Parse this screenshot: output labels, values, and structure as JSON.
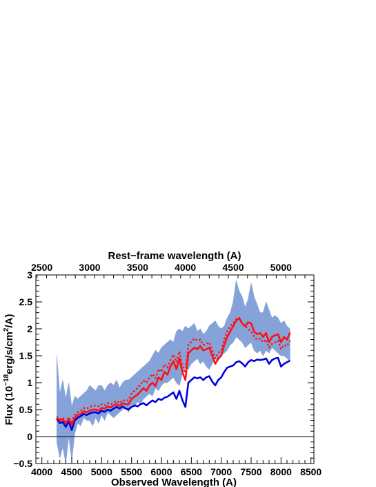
{
  "chart_data": {
    "type": "line",
    "xlabel": "Observed Wavelength (A)",
    "x2label": "Rest−frame wavelength (A)",
    "ylabel_main": "Flux (10",
    "ylabel_exp1": "−18",
    "ylabel_mid": "erg/s/cm",
    "ylabel_exp2": "2",
    "ylabel_end": "/A)",
    "xlim": [
      3900,
      8550
    ],
    "ylim": [
      -0.5,
      3
    ],
    "x_ticks": [
      4000,
      4500,
      5000,
      5500,
      6000,
      6500,
      7000,
      7500,
      8000,
      8500
    ],
    "x_tick_labels": [
      "4000",
      "4500",
      "5000",
      "5500",
      "6000",
      "6500",
      "7000",
      "7500",
      "8000",
      "8500"
    ],
    "y_ticks": [
      -0.5,
      0,
      0.5,
      1,
      1.5,
      2,
      2.5,
      3
    ],
    "y_tick_labels": [
      "−0.5",
      "0",
      "0.5",
      "1",
      "1.5",
      "2",
      "2.5",
      "3"
    ],
    "x2_ticks": [
      2500,
      3000,
      3500,
      4000,
      4500,
      5000
    ],
    "x2_tick_labels": [
      "2500",
      "3000",
      "3500",
      "4000",
      "4500",
      "5000"
    ],
    "rest_frame_factor": 1.6,
    "grid": false,
    "zero_line": true,
    "series": [
      {
        "style": "band",
        "color": "#7f9fd6",
        "x": [
          4250,
          4300,
          4350,
          4400,
          4450,
          4500,
          4550,
          4600,
          4650,
          4700,
          4750,
          4800,
          4850,
          4900,
          4950,
          5000,
          5050,
          5100,
          5150,
          5200,
          5250,
          5300,
          5350,
          5400,
          5450,
          5500,
          5550,
          5600,
          5650,
          5700,
          5750,
          5800,
          5850,
          5900,
          5950,
          6000,
          6050,
          6100,
          6150,
          6200,
          6250,
          6300,
          6350,
          6400,
          6450,
          6500,
          6550,
          6600,
          6650,
          6700,
          6750,
          6800,
          6850,
          6900,
          6950,
          7000,
          7050,
          7100,
          7150,
          7200,
          7250,
          7300,
          7350,
          7400,
          7450,
          7500,
          7550,
          7600,
          7650,
          7700,
          7750,
          7800,
          7850,
          7900,
          7950,
          8000,
          8050,
          8100,
          8150
        ],
        "low": [
          -0.1,
          -0.4,
          -0.2,
          -0.5,
          0.0,
          -0.45,
          0.05,
          0.25,
          0.2,
          0.35,
          0.3,
          0.3,
          0.2,
          0.35,
          0.25,
          0.4,
          0.3,
          0.45,
          0.4,
          0.35,
          0.4,
          0.45,
          0.5,
          0.55,
          0.45,
          0.6,
          0.55,
          0.65,
          0.6,
          0.7,
          0.75,
          0.8,
          0.75,
          0.9,
          0.85,
          0.95,
          1.0,
          1.0,
          1.05,
          1.1,
          1.0,
          0.95,
          1.15,
          1.3,
          1.25,
          1.35,
          1.4,
          1.45,
          1.35,
          1.4,
          1.3,
          1.25,
          1.35,
          1.45,
          1.4,
          1.5,
          1.55,
          1.6,
          1.7,
          1.75,
          1.85,
          1.8,
          1.75,
          1.65,
          1.7,
          1.75,
          1.6,
          1.55,
          1.6,
          1.5,
          1.6,
          1.55,
          1.65,
          1.6,
          1.55,
          1.5,
          1.5,
          1.45,
          1.4
        ],
        "high": [
          1.5,
          0.8,
          1.05,
          0.7,
          1.0,
          0.55,
          0.75,
          0.7,
          0.75,
          0.8,
          0.85,
          0.95,
          0.9,
          0.85,
          0.95,
          0.95,
          0.85,
          0.95,
          1.0,
          0.95,
          1.05,
          0.9,
          1.0,
          1.05,
          1.05,
          1.1,
          1.15,
          1.2,
          1.25,
          1.3,
          1.35,
          1.4,
          1.5,
          1.6,
          1.55,
          1.65,
          1.7,
          1.75,
          1.8,
          1.75,
          1.95,
          2.0,
          1.95,
          2.05,
          2.0,
          2.05,
          2.1,
          1.95,
          2.0,
          1.9,
          1.95,
          2.05,
          2.1,
          2.15,
          2.05,
          2.0,
          2.05,
          2.2,
          2.3,
          2.5,
          2.9,
          2.7,
          2.6,
          2.4,
          2.55,
          2.85,
          2.6,
          2.45,
          2.3,
          2.3,
          2.5,
          2.35,
          2.2,
          2.25,
          2.2,
          2.1,
          2.15,
          2.05,
          2.0
        ]
      },
      {
        "style": "solid",
        "color": "#0000e0",
        "x": [
          4250,
          4300,
          4350,
          4400,
          4450,
          4500,
          4550,
          4600,
          4650,
          4700,
          4750,
          4800,
          4850,
          4900,
          4950,
          5000,
          5050,
          5100,
          5150,
          5200,
          5250,
          5300,
          5350,
          5400,
          5450,
          5500,
          5550,
          5600,
          5650,
          5700,
          5750,
          5800,
          5850,
          5900,
          5950,
          6000,
          6050,
          6100,
          6150,
          6200,
          6250,
          6300,
          6350,
          6400,
          6450,
          6500,
          6550,
          6600,
          6650,
          6700,
          6750,
          6800,
          6850,
          6900,
          6950,
          7000,
          7050,
          7100,
          7150,
          7200,
          7250,
          7300,
          7350,
          7400,
          7450,
          7500,
          7550,
          7600,
          7650,
          7700,
          7750,
          7800,
          7850,
          7900,
          7950,
          8000,
          8050,
          8100,
          8150
        ],
        "y": [
          0.33,
          0.25,
          0.27,
          0.18,
          0.28,
          0.12,
          0.3,
          0.35,
          0.38,
          0.42,
          0.4,
          0.43,
          0.45,
          0.45,
          0.43,
          0.48,
          0.46,
          0.5,
          0.48,
          0.52,
          0.55,
          0.52,
          0.56,
          0.52,
          0.5,
          0.55,
          0.58,
          0.56,
          0.6,
          0.62,
          0.58,
          0.63,
          0.67,
          0.64,
          0.7,
          0.68,
          0.72,
          0.74,
          0.78,
          0.82,
          0.7,
          0.85,
          0.68,
          0.55,
          1.0,
          1.05,
          1.1,
          1.08,
          1.1,
          1.05,
          1.1,
          1.12,
          1.02,
          0.95,
          1.05,
          1.1,
          1.2,
          1.28,
          1.3,
          1.32,
          1.38,
          1.4,
          1.36,
          1.3,
          1.38,
          1.42,
          1.4,
          1.43,
          1.42,
          1.43,
          1.45,
          1.35,
          1.42,
          1.45,
          1.46,
          1.3,
          1.35,
          1.38,
          1.41
        ]
      },
      {
        "style": "solid",
        "color": "#ff1010",
        "x": [
          4250,
          4300,
          4350,
          4400,
          4450,
          4500,
          4550,
          4600,
          4650,
          4700,
          4750,
          4800,
          4850,
          4900,
          4950,
          5000,
          5050,
          5100,
          5150,
          5200,
          5250,
          5300,
          5350,
          5400,
          5450,
          5500,
          5550,
          5600,
          5650,
          5700,
          5750,
          5800,
          5850,
          5900,
          5950,
          6000,
          6050,
          6100,
          6150,
          6200,
          6250,
          6300,
          6350,
          6400,
          6450,
          6500,
          6550,
          6600,
          6650,
          6700,
          6750,
          6800,
          6850,
          6900,
          6950,
          7000,
          7050,
          7100,
          7150,
          7200,
          7250,
          7300,
          7350,
          7400,
          7450,
          7500,
          7550,
          7600,
          7650,
          7700,
          7750,
          7800,
          7850,
          7900,
          7950,
          8000,
          8050,
          8100,
          8150
        ],
        "y": [
          0.35,
          0.3,
          0.32,
          0.25,
          0.32,
          0.22,
          0.35,
          0.4,
          0.42,
          0.47,
          0.45,
          0.48,
          0.5,
          0.5,
          0.48,
          0.53,
          0.52,
          0.56,
          0.54,
          0.58,
          0.6,
          0.57,
          0.62,
          0.6,
          0.6,
          0.7,
          0.74,
          0.78,
          0.84,
          0.9,
          0.85,
          0.95,
          1.0,
          0.94,
          1.1,
          1.05,
          1.2,
          1.15,
          1.3,
          1.4,
          1.25,
          1.45,
          1.2,
          1.05,
          1.55,
          1.6,
          1.65,
          1.62,
          1.68,
          1.6,
          1.62,
          1.65,
          1.5,
          1.35,
          1.45,
          1.5,
          1.7,
          1.85,
          1.95,
          2.05,
          2.15,
          2.2,
          2.1,
          2.05,
          2.12,
          2.1,
          1.95,
          1.9,
          1.92,
          1.85,
          1.92,
          1.75,
          1.85,
          1.88,
          1.9,
          1.75,
          1.85,
          1.8,
          1.93
        ]
      },
      {
        "style": "dotted",
        "color": "#ff1010",
        "x": [
          4250,
          4300,
          4350,
          4400,
          4450,
          4500,
          4550,
          4600,
          4650,
          4700,
          4750,
          4800,
          4850,
          4900,
          4950,
          5000,
          5050,
          5100,
          5150,
          5200,
          5250,
          5300,
          5350,
          5400,
          5450,
          5500,
          5550,
          5600,
          5650,
          5700,
          5750,
          5800,
          5850,
          5900,
          5950,
          6000,
          6050,
          6100,
          6150,
          6200,
          6250,
          6300,
          6350,
          6400,
          6450,
          6500,
          6550,
          6600,
          6650,
          6700,
          6750,
          6800,
          6850,
          6900,
          6950,
          7000,
          7050,
          7100,
          7150,
          7200,
          7250,
          7300,
          7350,
          7400,
          7450,
          7500,
          7550,
          7600,
          7650,
          7700,
          7750,
          7800,
          7850,
          7900,
          7950,
          8000,
          8050,
          8100,
          8150
        ],
        "y": [
          0.37,
          0.32,
          0.35,
          0.28,
          0.36,
          0.27,
          0.4,
          0.45,
          0.48,
          0.53,
          0.52,
          0.55,
          0.57,
          0.58,
          0.56,
          0.6,
          0.58,
          0.62,
          0.6,
          0.63,
          0.66,
          0.62,
          0.68,
          0.66,
          0.68,
          0.8,
          0.85,
          0.9,
          0.97,
          1.04,
          1.0,
          1.1,
          1.16,
          1.08,
          1.25,
          1.2,
          1.34,
          1.28,
          1.42,
          1.52,
          1.38,
          1.58,
          1.32,
          1.18,
          1.7,
          1.76,
          1.82,
          1.78,
          1.8,
          1.7,
          1.72,
          1.75,
          1.6,
          1.45,
          1.55,
          1.6,
          1.8,
          1.95,
          2.05,
          2.1,
          2.18,
          2.2,
          2.1,
          2.05,
          2.0,
          1.95,
          1.85,
          1.8,
          1.82,
          1.75,
          1.8,
          1.65,
          1.72,
          1.75,
          1.78,
          1.62,
          1.7,
          1.68,
          1.78
        ]
      }
    ]
  }
}
